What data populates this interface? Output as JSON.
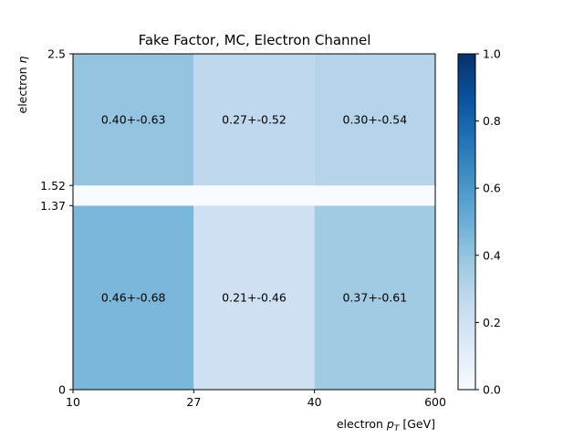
{
  "chart_data": {
    "type": "heatmap",
    "title": "Fake Factor, MC, Electron Channel",
    "xlabel": {
      "prefix": "electron ",
      "var": "p",
      "sub": "T",
      "suffix": " [GeV]"
    },
    "ylabel": {
      "prefix": "electron ",
      "var": "η"
    },
    "x_edges": [
      10,
      27,
      40,
      600
    ],
    "y_edges": [
      0,
      1.37,
      1.52,
      2.5
    ],
    "x_tick_labels": [
      "10",
      "27",
      "40",
      "600"
    ],
    "y_tick_labels": [
      "0",
      "1.37",
      "1.52",
      "2.5"
    ],
    "cells": [
      {
        "x_bin": 0,
        "y_bin": 0,
        "value": 0.46,
        "label": "0.46+-0.68"
      },
      {
        "x_bin": 1,
        "y_bin": 0,
        "value": 0.21,
        "label": "0.21+-0.46"
      },
      {
        "x_bin": 2,
        "y_bin": 0,
        "value": 0.37,
        "label": "0.37+-0.61"
      },
      {
        "x_bin": 0,
        "y_bin": 1,
        "value": 0.0,
        "label": ""
      },
      {
        "x_bin": 1,
        "y_bin": 1,
        "value": 0.0,
        "label": ""
      },
      {
        "x_bin": 2,
        "y_bin": 1,
        "value": 0.0,
        "label": ""
      },
      {
        "x_bin": 0,
        "y_bin": 2,
        "value": 0.4,
        "label": "0.40+-0.63"
      },
      {
        "x_bin": 1,
        "y_bin": 2,
        "value": 0.27,
        "label": "0.27+-0.52"
      },
      {
        "x_bin": 2,
        "y_bin": 2,
        "value": 0.3,
        "label": "0.30+-0.54"
      }
    ],
    "colorbar": {
      "colormap": "Blues",
      "range": [
        0.0,
        1.0
      ],
      "ticks": [
        0.0,
        0.2,
        0.4,
        0.6,
        0.8,
        1.0
      ],
      "tick_labels": [
        "0.0",
        "0.2",
        "0.4",
        "0.6",
        "0.8",
        "1.0"
      ]
    },
    "colormap_stops": [
      "#f7fbff",
      "#deebf7",
      "#c6dbef",
      "#9ecae1",
      "#6baed6",
      "#4292c6",
      "#2171b5",
      "#08519c",
      "#08306b"
    ],
    "grid": false,
    "legend": "none"
  }
}
